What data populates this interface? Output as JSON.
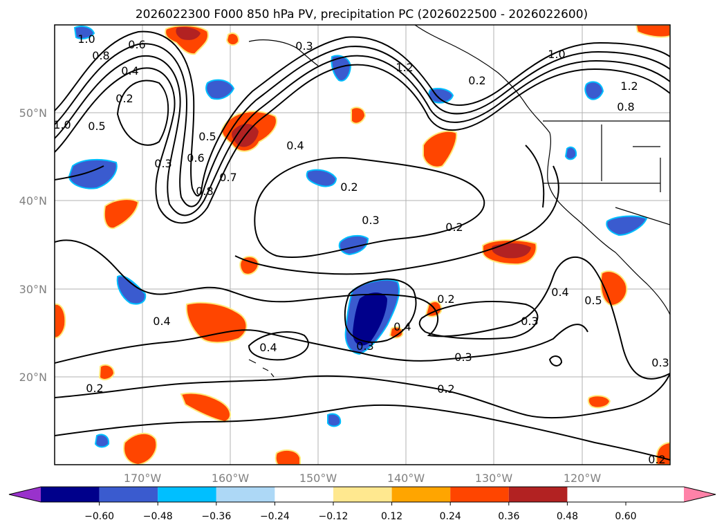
{
  "title": "2026022300 F000 850 hPa PV, precipitation PC (2026022500 - 2026022600)",
  "map": {
    "lon_range": [
      -180,
      -110
    ],
    "lat_range": [
      10,
      60
    ],
    "lat_labels": [
      "50°N",
      "40°N",
      "30°N",
      "20°N"
    ],
    "lon_labels": [
      "170°W",
      "160°W",
      "150°W",
      "140°W",
      "130°W",
      "120°W"
    ],
    "contour_labels": [
      "1.0",
      "0.8",
      "0.6",
      "0.4",
      "0.2",
      "0.5",
      "1.0",
      "0.3",
      "0.5",
      "0.6",
      "0.8",
      "0.7",
      "0.4",
      "0.2",
      "0.3",
      "0.2",
      "1.2",
      "1.0",
      "1.2",
      "0.8",
      "0.4",
      "0.2",
      "0.3",
      "0.4",
      "0.4",
      "0.3",
      "0.2",
      "0.4",
      "0.3",
      "0.5",
      "0.2",
      "0.3",
      "0.2",
      "0.3",
      "0.2"
    ],
    "colors": {
      "dark_blue": "#00008b",
      "blue": "#3a5bcf",
      "cyan": "#00bfff",
      "orange_red": "#ff4500",
      "firebrick": "#b22222",
      "gold": "#ffe97a",
      "grid": "#b0b0b0"
    }
  },
  "colorbar": {
    "ticks": [
      "−0.60",
      "−0.48",
      "−0.36",
      "−0.24",
      "−0.12",
      "0.12",
      "0.24",
      "0.36",
      "0.48",
      "0.60"
    ],
    "colors": [
      "#9932cc",
      "#00008b",
      "#3a5bcf",
      "#00bfff",
      "#add8f6",
      "#ffffff",
      "#ffe88f",
      "#ffa500",
      "#ff4500",
      "#b22222",
      "#ff82a8"
    ]
  }
}
